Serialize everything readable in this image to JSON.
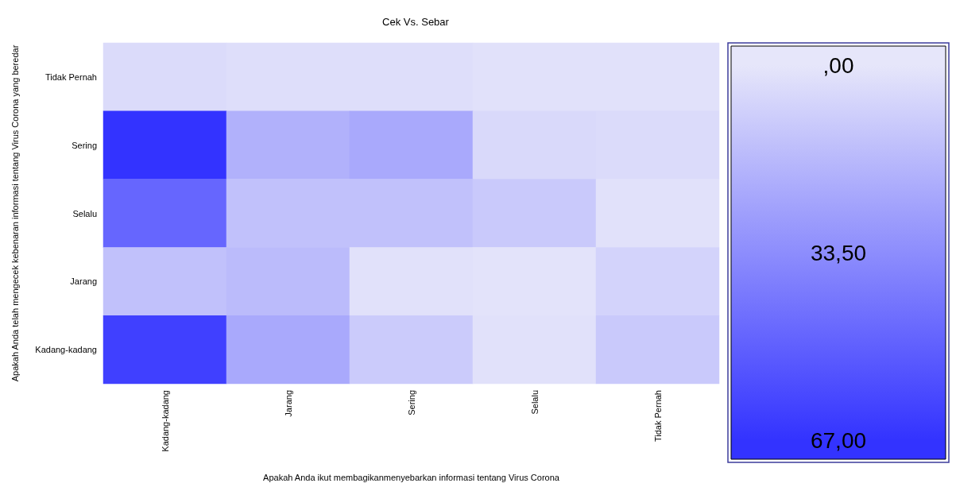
{
  "chart_data": {
    "type": "heatmap",
    "title": "Cek Vs. Sebar",
    "xlabel": "Apakah Anda ikut membagikanmenyebarkan informasi tentang Virus Corona",
    "ylabel": "Apakah Anda telah mengecek kebenaran informasi tentang Virus Corona yang beredar",
    "categories": [
      "Kadang-kadang",
      "Jarang",
      "Sering",
      "Selalu",
      "Tidak Pernah"
    ],
    "y_categories": [
      "Tidak Pernah",
      "Sering",
      "Selalu",
      "Jarang",
      "Kadang-kadang"
    ],
    "cells": [
      [
        4,
        3,
        3,
        2,
        2
      ],
      [
        67,
        20,
        23,
        5,
        4
      ],
      [
        48,
        14,
        14,
        11,
        2
      ],
      [
        14,
        16,
        2,
        1,
        7
      ],
      [
        62,
        23,
        10,
        2,
        11
      ]
    ],
    "clim": [
      0,
      67
    ],
    "cticks": [
      {
        "value": 0,
        "label": ",00"
      },
      {
        "value": 33.5,
        "label": "33,50"
      },
      {
        "value": 67,
        "label": "67,00"
      }
    ]
  }
}
